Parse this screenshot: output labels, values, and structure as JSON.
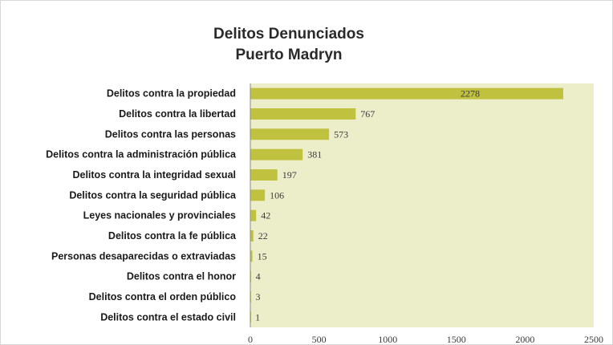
{
  "chart_data": {
    "type": "bar",
    "orientation": "horizontal",
    "title": "Delitos Denunciados",
    "subtitle": "Puerto Madryn",
    "categories": [
      "Delitos contra la propiedad",
      "Delitos contra la libertad",
      "Delitos contra las personas",
      "Delitos contra la administración pública",
      "Delitos contra la integridad sexual",
      "Delitos contra la seguridad pública",
      "Leyes nacionales y provinciales",
      "Delitos contra la fe pública",
      "Personas desaparecidas o extraviadas",
      "Delitos contra el honor",
      "Delitos contra el orden público",
      "Delitos contra el estado civil"
    ],
    "values": [
      2278,
      767,
      573,
      381,
      197,
      106,
      42,
      22,
      15,
      4,
      3,
      1
    ],
    "xlim": [
      0,
      2500
    ],
    "xticks": [
      "0",
      "500",
      "1000",
      "1500",
      "2000",
      "2500"
    ],
    "grid": false,
    "legend": "none",
    "colors": {
      "bar": "#bfc13f",
      "plot_area": "#eceec9",
      "axis": "#8a8a8a"
    }
  }
}
